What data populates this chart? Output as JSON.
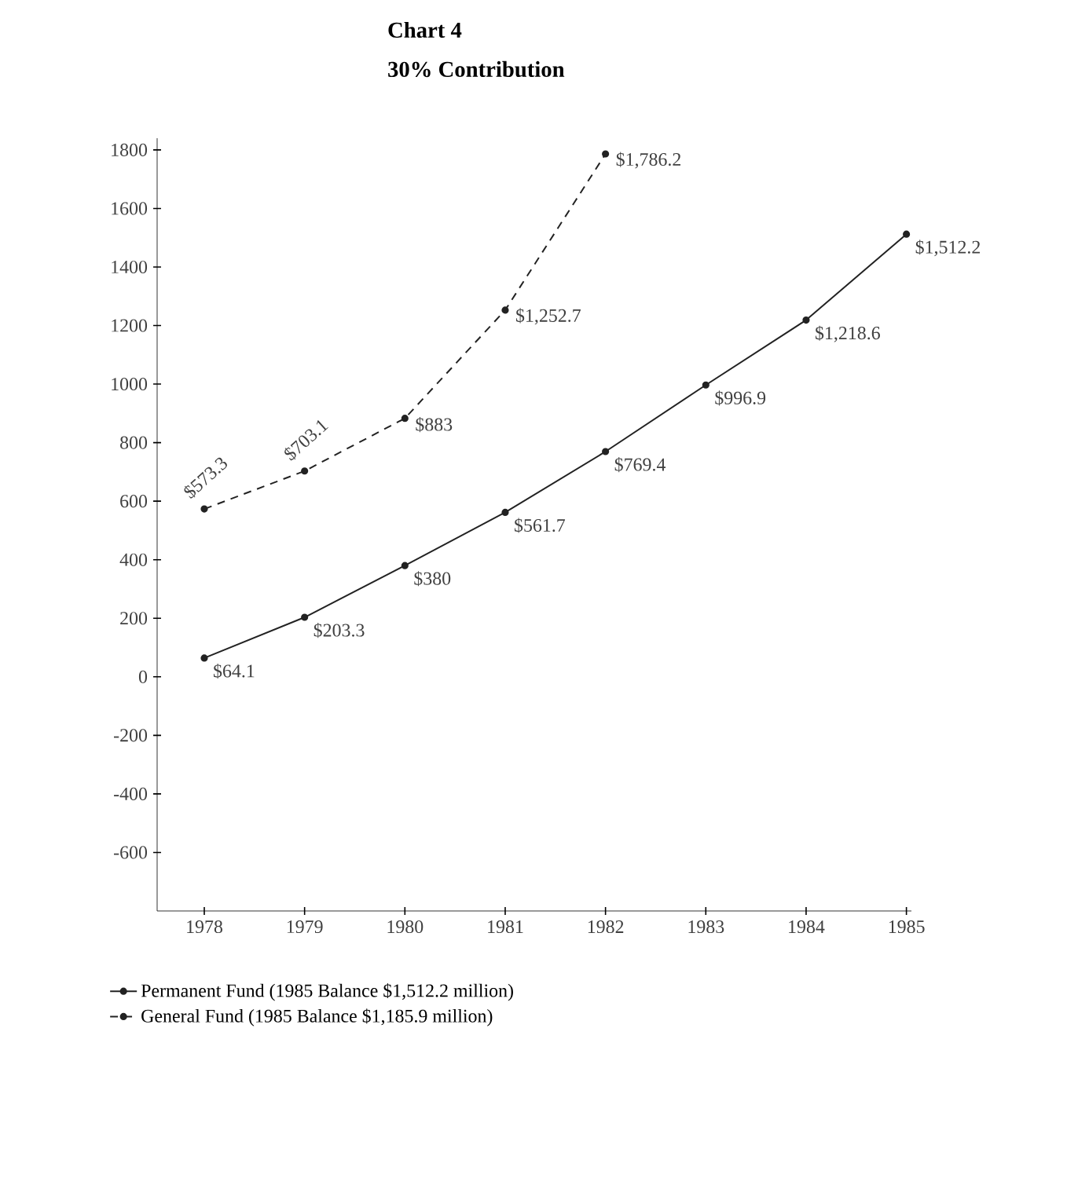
{
  "chart_data": {
    "type": "line",
    "title": "Chart 4",
    "subtitle": "30% Contribution",
    "categories": [
      "1978",
      "1979",
      "1980",
      "1981",
      "1982",
      "1983",
      "1984",
      "1985"
    ],
    "series": [
      {
        "name": "Permanent Fund (1985 Balance $1,512.2 million)",
        "color": "#222222",
        "line_style": "solid",
        "values": [
          64.1,
          203.3,
          380,
          561.7,
          769.4,
          996.9,
          1218.6,
          1512.2
        ],
        "value_labels": [
          "$64.1",
          "$203.3",
          "$380",
          "$561.7",
          "$769.4",
          "$996.9",
          "$1,218.6",
          "$1,512.2"
        ]
      },
      {
        "name": "General Fund (1985 Balance $1,185.9 million)",
        "color": "#222222",
        "line_style": "dashed",
        "values": [
          573.3,
          703.1,
          883,
          1252.7,
          1786.2,
          null,
          null,
          null
        ],
        "value_labels": [
          "$573.3",
          "$703.1",
          "$883",
          "$1,252.7",
          "$1,786.2",
          null,
          null,
          null
        ]
      }
    ],
    "ylim": [
      -800,
      1840
    ],
    "yticks": [
      {
        "value": -600,
        "label": "-600"
      },
      {
        "value": -400,
        "label": "-400"
      },
      {
        "value": -200,
        "label": "-200"
      },
      0,
      200,
      400,
      600,
      800,
      1000,
      1200,
      1400,
      1600,
      1800
    ],
    "marker": "circle",
    "grid": false,
    "legend": "bottom"
  }
}
